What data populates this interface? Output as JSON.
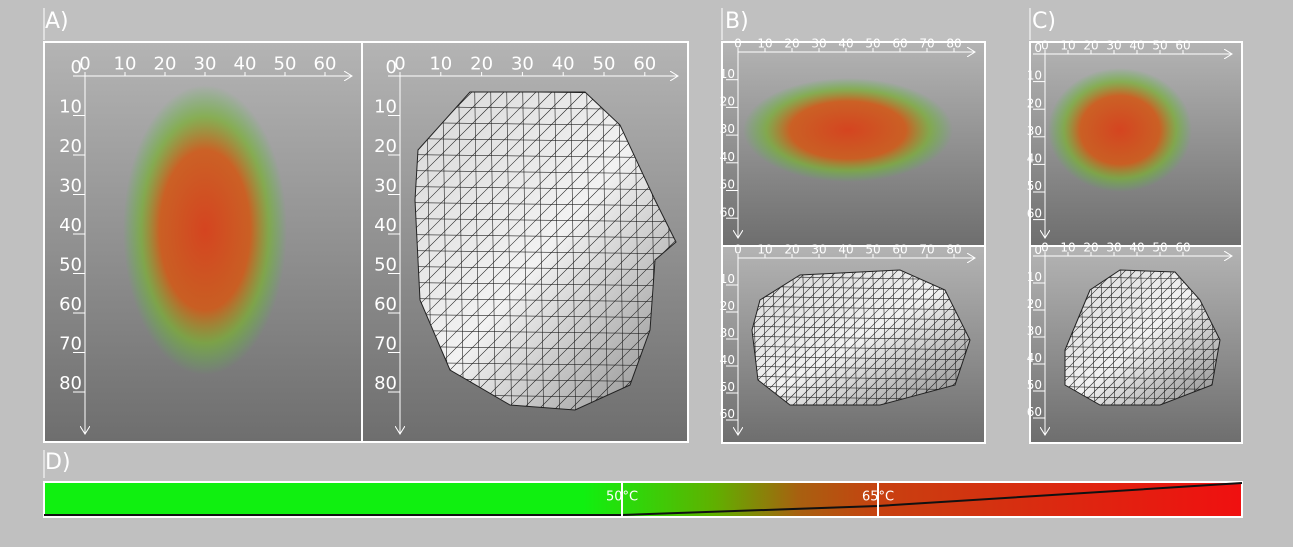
{
  "panels": [
    {
      "label": "A)",
      "views": [
        {
          "x_ticks": [
            0,
            10,
            20,
            30,
            40,
            50,
            60
          ],
          "y_ticks": [
            0,
            10,
            20,
            30,
            40,
            50,
            60,
            70,
            80
          ]
        },
        {
          "x_ticks": [
            0,
            10,
            20,
            30,
            40,
            50,
            60
          ],
          "y_ticks": [
            0,
            10,
            20,
            30,
            40,
            50,
            60,
            70,
            80
          ]
        }
      ]
    },
    {
      "label": "B)",
      "views": [
        {
          "x_ticks": [
            0,
            10,
            20,
            30,
            40,
            50,
            60,
            70,
            80
          ],
          "y_ticks": [
            10,
            20,
            30,
            40,
            50,
            60
          ]
        },
        {
          "x_ticks": [
            0,
            10,
            20,
            30,
            40,
            50,
            60,
            70,
            80
          ],
          "y_ticks": [
            10,
            20,
            30,
            40,
            50,
            60
          ]
        }
      ]
    },
    {
      "label": "C)",
      "views": [
        {
          "x_ticks": [
            0,
            10,
            20,
            30,
            40,
            50,
            60
          ],
          "y_ticks": [
            0,
            10,
            20,
            30,
            40,
            50,
            60
          ]
        },
        {
          "x_ticks": [
            0,
            10,
            20,
            30,
            40,
            50,
            60
          ],
          "y_ticks": [
            0,
            10,
            20,
            30,
            40,
            50,
            60
          ]
        }
      ]
    }
  ],
  "colorbar": {
    "label": "D)",
    "markers": [
      "50°C",
      "65°C"
    ]
  }
}
